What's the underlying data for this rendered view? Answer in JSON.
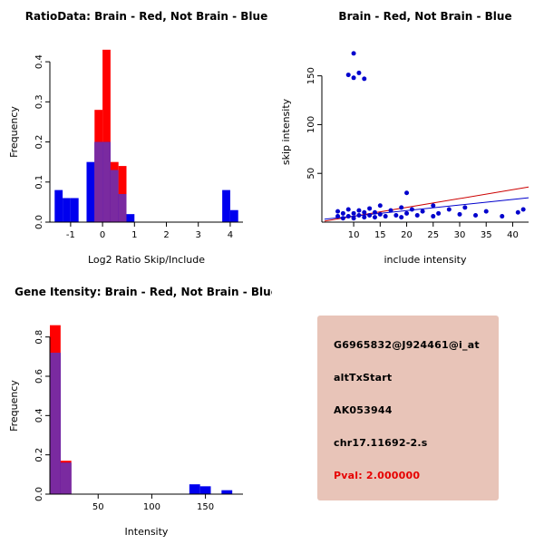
{
  "page": {
    "background": "#ffffff"
  },
  "chart_data": [
    {
      "type": "histogram",
      "title": "RatioData: Brain - Red, Not Brain - Blue",
      "xlabel": "Log2 Ratio Skip/Include",
      "ylabel": "Frequency",
      "xlim": [
        -1.65,
        4.4
      ],
      "ylim": [
        0,
        0.45
      ],
      "xticks": [
        {
          "v": -1,
          "label": "-1"
        },
        {
          "v": 0,
          "label": "0"
        },
        {
          "v": 1,
          "label": "1"
        },
        {
          "v": 2,
          "label": "2"
        },
        {
          "v": 3,
          "label": "3"
        },
        {
          "v": 4,
          "label": "4"
        }
      ],
      "yticks": [
        {
          "v": 0,
          "label": "0.0"
        },
        {
          "v": 0.1,
          "label": "0.1"
        },
        {
          "v": 0.2,
          "label": "0.2"
        },
        {
          "v": 0.3,
          "label": "0.3"
        },
        {
          "v": 0.4,
          "label": "0.4"
        }
      ],
      "bin_width": 0.25,
      "series_colors": {
        "red": "#ff0000",
        "blue": "#0000ee",
        "overlap": "#7a2aa0"
      },
      "bins": [
        {
          "x": -1.5,
          "red": 0,
          "blue": 0.08
        },
        {
          "x": -1.25,
          "red": 0,
          "blue": 0.06
        },
        {
          "x": -1.0,
          "red": 0,
          "blue": 0.06
        },
        {
          "x": -0.5,
          "red": 0,
          "blue": 0.15
        },
        {
          "x": -0.25,
          "red": 0.28,
          "blue": 0.2
        },
        {
          "x": 0,
          "red": 0.43,
          "blue": 0.2
        },
        {
          "x": 0.25,
          "red": 0.15,
          "blue": 0.13
        },
        {
          "x": 0.5,
          "red": 0.14,
          "blue": 0.07
        },
        {
          "x": 0.75,
          "red": 0,
          "blue": 0.02
        },
        {
          "x": 3.75,
          "red": 0,
          "blue": 0.08
        },
        {
          "x": 4.0,
          "red": 0,
          "blue": 0.03
        }
      ]
    },
    {
      "type": "scatter",
      "title": "Brain - Red, Not Brain - Blue",
      "xlabel": "include intensity",
      "ylabel": "skip intensity",
      "xlim": [
        4,
        43
      ],
      "ylim": [
        0,
        185
      ],
      "xticks": [
        {
          "v": 10,
          "label": "10"
        },
        {
          "v": 15,
          "label": "15"
        },
        {
          "v": 20,
          "label": "20"
        },
        {
          "v": 25,
          "label": "25"
        },
        {
          "v": 30,
          "label": "30"
        },
        {
          "v": 35,
          "label": "35"
        },
        {
          "v": 40,
          "label": "40"
        }
      ],
      "yticks": [
        {
          "v": 50,
          "label": "50"
        },
        {
          "v": 100,
          "label": "100"
        },
        {
          "v": 150,
          "label": "150"
        }
      ],
      "point_color": "#0000cd",
      "points": [
        [
          10,
          173
        ],
        [
          9,
          151
        ],
        [
          10,
          148
        ],
        [
          11,
          153
        ],
        [
          12,
          147
        ],
        [
          7,
          6
        ],
        [
          7,
          11
        ],
        [
          8,
          4
        ],
        [
          8,
          9
        ],
        [
          9,
          13
        ],
        [
          9,
          6
        ],
        [
          10,
          9
        ],
        [
          10,
          4
        ],
        [
          11,
          7
        ],
        [
          11,
          12
        ],
        [
          12,
          5
        ],
        [
          12,
          10
        ],
        [
          13,
          14
        ],
        [
          13,
          7
        ],
        [
          14,
          5
        ],
        [
          14,
          10
        ],
        [
          15,
          8
        ],
        [
          15,
          17
        ],
        [
          16,
          6
        ],
        [
          17,
          12
        ],
        [
          18,
          7
        ],
        [
          19,
          15
        ],
        [
          19,
          5
        ],
        [
          20,
          9
        ],
        [
          20,
          30
        ],
        [
          21,
          13
        ],
        [
          22,
          7
        ],
        [
          23,
          11
        ],
        [
          25,
          6
        ],
        [
          25,
          17
        ],
        [
          26,
          9
        ],
        [
          28,
          13
        ],
        [
          30,
          8
        ],
        [
          31,
          15
        ],
        [
          33,
          7
        ],
        [
          35,
          11
        ],
        [
          38,
          6
        ],
        [
          41,
          10
        ],
        [
          42,
          13
        ]
      ],
      "fit_lines": [
        {
          "name": "brain-fit-line",
          "color": "#cc0000",
          "x1": 4.5,
          "y1": 1,
          "x2": 43,
          "y2": 36
        },
        {
          "name": "notbrain-fit-line",
          "color": "#0000cc",
          "x1": 4.5,
          "y1": 3,
          "x2": 43,
          "y2": 25
        }
      ]
    },
    {
      "type": "histogram",
      "title": "Gene Itensity: Brain - Red, Not Brain - Blue",
      "xlabel": "Intensity",
      "ylabel": "Frequency",
      "xlim": [
        5,
        185
      ],
      "ylim": [
        0,
        0.9
      ],
      "xticks": [
        {
          "v": 50,
          "label": "50"
        },
        {
          "v": 100,
          "label": "100"
        },
        {
          "v": 150,
          "label": "150"
        }
      ],
      "yticks": [
        {
          "v": 0,
          "label": "0.0"
        },
        {
          "v": 0.2,
          "label": "0.2"
        },
        {
          "v": 0.4,
          "label": "0.4"
        },
        {
          "v": 0.6,
          "label": "0.6"
        },
        {
          "v": 0.8,
          "label": "0.8"
        }
      ],
      "bin_width": 10,
      "series_colors": {
        "red": "#ff0000",
        "blue": "#0000ee",
        "overlap": "#7a2aa0"
      },
      "bins": [
        {
          "x": 5,
          "red": 0.86,
          "blue": 0.72
        },
        {
          "x": 15,
          "red": 0.17,
          "blue": 0.16
        },
        {
          "x": 135,
          "red": 0,
          "blue": 0.05
        },
        {
          "x": 145,
          "red": 0,
          "blue": 0.04
        },
        {
          "x": 165,
          "red": 0,
          "blue": 0.02
        }
      ]
    }
  ],
  "info_panel": {
    "background": "#e8c4b8",
    "lines": [
      {
        "text": "G6965832@J924461@i_at",
        "color": "#000000"
      },
      {
        "text": "altTxStart",
        "color": "#000000"
      },
      {
        "text": "AK053944",
        "color": "#000000"
      },
      {
        "text": "chr17.11692-2.s",
        "color": "#000000"
      },
      {
        "text": "Pval: 2.000000",
        "color": "#e60000"
      }
    ]
  }
}
